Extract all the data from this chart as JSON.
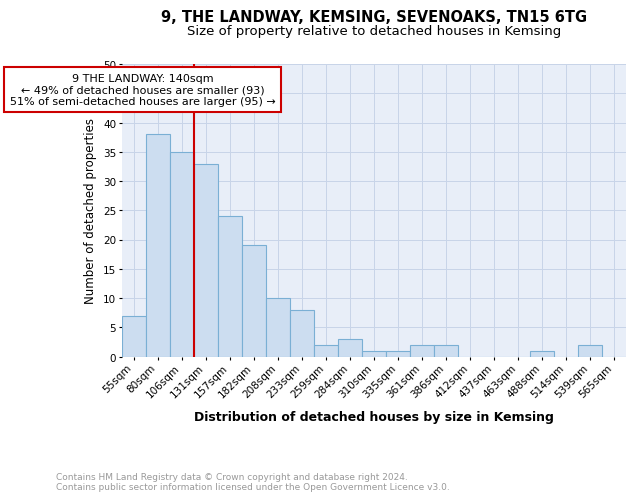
{
  "title1": "9, THE LANDWAY, KEMSING, SEVENOAKS, TN15 6TG",
  "title2": "Size of property relative to detached houses in Kemsing",
  "xlabel": "Distribution of detached houses by size in Kemsing",
  "ylabel": "Number of detached properties",
  "categories": [
    "55sqm",
    "80sqm",
    "106sqm",
    "131sqm",
    "157sqm",
    "182sqm",
    "208sqm",
    "233sqm",
    "259sqm",
    "284sqm",
    "310sqm",
    "335sqm",
    "361sqm",
    "386sqm",
    "412sqm",
    "437sqm",
    "463sqm",
    "488sqm",
    "514sqm",
    "539sqm",
    "565sqm"
  ],
  "values": [
    7,
    38,
    35,
    33,
    24,
    19,
    10,
    8,
    2,
    3,
    1,
    1,
    2,
    2,
    0,
    0,
    0,
    1,
    0,
    2,
    0
  ],
  "bar_color": "#ccddf0",
  "bar_edge_color": "#7aafd4",
  "vline_color": "#cc0000",
  "annotation_text": "9 THE LANDWAY: 140sqm\n← 49% of detached houses are smaller (93)\n51% of semi-detached houses are larger (95) →",
  "annotation_box_color": "white",
  "annotation_box_edge": "#cc0000",
  "ylim": [
    0,
    50
  ],
  "yticks": [
    0,
    5,
    10,
    15,
    20,
    25,
    30,
    35,
    40,
    45,
    50
  ],
  "grid_color": "#c8d4e8",
  "background_color": "#e8eef8",
  "footer_text": "Contains HM Land Registry data © Crown copyright and database right 2024.\nContains public sector information licensed under the Open Government Licence v3.0.",
  "title1_fontsize": 10.5,
  "title2_fontsize": 9.5,
  "xlabel_fontsize": 9,
  "ylabel_fontsize": 8.5,
  "tick_fontsize": 7.5,
  "annotation_fontsize": 8,
  "footer_fontsize": 6.5
}
